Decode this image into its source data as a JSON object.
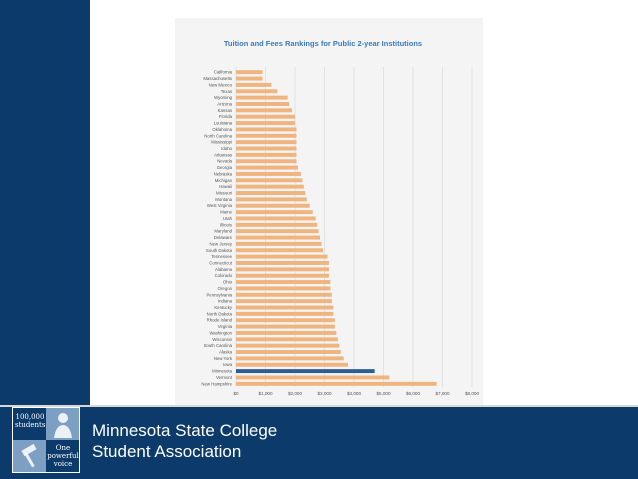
{
  "org": {
    "line1": "Minnesota State College",
    "line2": "Student Association"
  },
  "logo": {
    "top_text_1": "100,000",
    "top_text_2": "students",
    "bottom_text_1": "One",
    "bottom_text_2": "powerful",
    "bottom_text_3": "voice"
  },
  "colors": {
    "brand_navy": "#0b3a6b",
    "bar_default": "#f0b47e",
    "bar_highlight": "#2a5e95",
    "title_blue": "#3a7ab8"
  },
  "chart_data": {
    "type": "bar",
    "orientation": "horizontal",
    "title": "Tuition and Fees Rankings for Public 2-year Institutions",
    "xlim": [
      0,
      8000
    ],
    "xticks": [
      0,
      1000,
      2000,
      3000,
      4000,
      5000,
      6000,
      7000,
      8000
    ],
    "xtick_labels": [
      "$0",
      "$1,000",
      "$2,000",
      "$3,000",
      "$4,000",
      "$5,000",
      "$6,000",
      "$7,000",
      "$8,000"
    ],
    "grid": true,
    "highlight": "Minnesota",
    "categories": [
      "California",
      "Massachusetts",
      "New Mexico",
      "Texas",
      "Wyoming",
      "Arizona",
      "Kansas",
      "Florida",
      "Louisiana",
      "Oklahoma",
      "North Carolina",
      "Mississippi",
      "Idaho",
      "Arkansas",
      "Nevada",
      "Georgia",
      "Nebraska",
      "Michigan",
      "Hawaii",
      "Missouri",
      "Montana",
      "West Virginia",
      "Maine",
      "Utah",
      "Illinois",
      "Maryland",
      "Delaware",
      "New Jersey",
      "South Dakota",
      "Tennessee",
      "Connecticut",
      "Alabama",
      "Colorado",
      "Ohio",
      "Oregon",
      "Pennsylvania",
      "Indiana",
      "Kentucky",
      "North Dakota",
      "Rhode Island",
      "Virginia",
      "Washington",
      "Wisconsin",
      "South Carolina",
      "Alaska",
      "New York",
      "Iowa",
      "Minnesota",
      "Vermont",
      "New Hampshire"
    ],
    "values": [
      900,
      900,
      1200,
      1400,
      1750,
      1800,
      1900,
      2000,
      2000,
      2050,
      2050,
      2050,
      2050,
      2050,
      2050,
      2100,
      2200,
      2250,
      2300,
      2350,
      2400,
      2500,
      2600,
      2700,
      2750,
      2800,
      2850,
      2900,
      2950,
      3100,
      3150,
      3150,
      3150,
      3200,
      3200,
      3250,
      3250,
      3300,
      3300,
      3350,
      3350,
      3400,
      3450,
      3500,
      3550,
      3650,
      3800,
      4700,
      5200,
      6800
    ]
  }
}
